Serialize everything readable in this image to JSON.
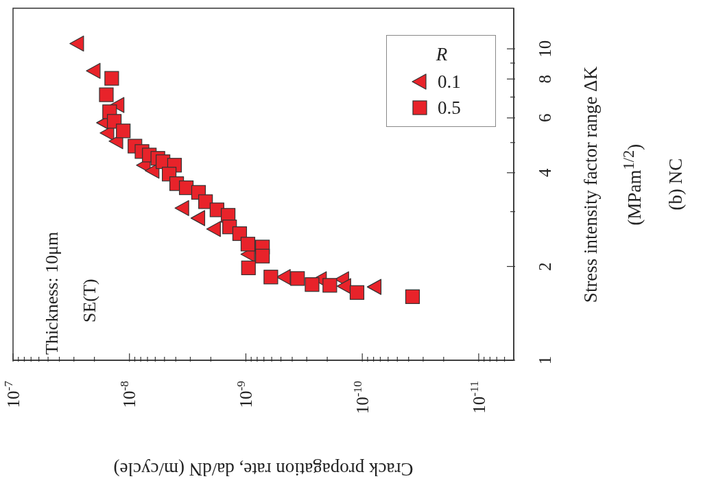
{
  "chart_data": {
    "type": "scatter",
    "xlabel": "Crack propagation rate, da/dN (m/cycle)",
    "ylabel": "Stress intensity factor range ΔK (MPam$^{1/2}$)",
    "legend_title": "R",
    "legend": "top right",
    "log": "xy",
    "annotations": [
      "Thickness: 10μm",
      "SE(T)",
      "(b) NC"
    ],
    "ylim": [
      1,
      13.5
    ],
    "yticks": [
      1,
      2,
      {
        "value": 3,
        "label": null
      },
      4,
      {
        "value": 5,
        "label": null
      },
      6,
      {
        "value": 7,
        "label": null
      },
      8,
      {
        "value": 9,
        "label": null
      },
      10
    ],
    "xlim": [
      1e-07,
      5e-12
    ],
    "xticks": [
      {
        "value": 6e-12,
        "label": null
      },
      {
        "value": 7e-12,
        "label": null
      },
      {
        "value": 8e-12,
        "label": null
      },
      {
        "value": 9e-12,
        "label": null
      },
      {
        "value": 1e-11,
        "label": "10$^{-11}$"
      },
      {
        "value": 2e-11,
        "label": null
      },
      {
        "value": 3e-11,
        "label": null
      },
      {
        "value": 4e-11,
        "label": null
      },
      {
        "value": 5e-11,
        "label": null
      },
      {
        "value": 6e-11,
        "label": null
      },
      {
        "value": 7e-11,
        "label": null
      },
      {
        "value": 8e-11,
        "label": null
      },
      {
        "value": 9e-11,
        "label": null
      },
      {
        "value": 1e-10,
        "label": "10$^{-10}$"
      },
      {
        "value": 2e-10,
        "label": null
      },
      {
        "value": 3e-10,
        "label": null
      },
      {
        "value": 4e-10,
        "label": null
      },
      {
        "value": 5e-10,
        "label": null
      },
      {
        "value": 6e-10,
        "label": null
      },
      {
        "value": 7e-10,
        "label": null
      },
      {
        "value": 8e-10,
        "label": null
      },
      {
        "value": 9e-10,
        "label": null
      },
      {
        "value": 1e-09,
        "label": "10$^{-9}$"
      },
      {
        "value": 2e-09,
        "label": null
      },
      {
        "value": 3e-09,
        "label": null
      },
      {
        "value": 4e-09,
        "label": null
      },
      {
        "value": 5e-09,
        "label": null
      },
      {
        "value": 6e-09,
        "label": null
      },
      {
        "value": 7e-09,
        "label": null
      },
      {
        "value": 8e-09,
        "label": null
      },
      {
        "value": 9e-09,
        "label": null
      },
      {
        "value": 1e-08,
        "label": "10$^{-8}$"
      },
      {
        "value": 2e-08,
        "label": null
      },
      {
        "value": 3e-08,
        "label": null
      },
      {
        "value": 4e-08,
        "label": null
      },
      {
        "value": 5e-08,
        "label": null
      },
      {
        "value": 6e-08,
        "label": null
      },
      {
        "value": 7e-08,
        "label": null
      },
      {
        "value": 8e-08,
        "label": null
      },
      {
        "value": 9e-08,
        "label": null
      },
      {
        "value": 1e-07,
        "label": "10$^{-7}$"
      }
    ],
    "series": [
      {
        "name": "0.1",
        "color": "#e8232a",
        "marker": "triangle",
        "values": [
          10.4,
          8.5,
          6.6,
          5.79,
          5.37,
          5.05,
          4.23,
          4.06,
          3.08,
          2.86,
          2.64,
          2.19,
          1.85,
          1.82,
          1.82,
          1.73,
          1.72
        ],
        "x": [
          2.8e-08,
          2.02e-08,
          1.26e-08,
          1.65e-08,
          1.54e-08,
          1.29e-08,
          7.5e-09,
          6.3e-09,
          3.5e-09,
          2.55e-09,
          1.87e-09,
          9.5e-10,
          4.7e-10,
          2.3e-10,
          1.48e-10,
          1.42e-10,
          7.8e-11
        ]
      },
      {
        "name": "0.5",
        "color": "#e8232a",
        "marker": "square",
        "values": [
          8.04,
          7.12,
          6.28,
          5.85,
          5.45,
          4.87,
          4.68,
          4.56,
          4.45,
          4.34,
          4.23,
          3.96,
          3.69,
          3.58,
          3.46,
          3.23,
          3.04,
          2.92,
          2.68,
          2.55,
          2.36,
          2.31,
          2.16,
          1.98,
          1.85,
          1.83,
          1.75,
          1.74,
          1.65,
          1.6
        ],
        "x": [
          1.42e-08,
          1.58e-08,
          1.48e-08,
          1.35e-08,
          1.13e-08,
          8.97e-09,
          7.8e-09,
          6.75e-09,
          5.7e-09,
          5.15e-09,
          4.1e-09,
          4.56e-09,
          3.93e-09,
          3.25e-09,
          2.55e-09,
          2.22e-09,
          1.77e-09,
          1.42e-09,
          1.38e-09,
          1.13e-09,
          9.6e-10,
          7.2e-10,
          7.2e-10,
          9.5e-10,
          6.1e-10,
          3.6e-10,
          2.7e-10,
          1.9e-10,
          1.11e-10,
          3.7e-11
        ]
      }
    ]
  }
}
